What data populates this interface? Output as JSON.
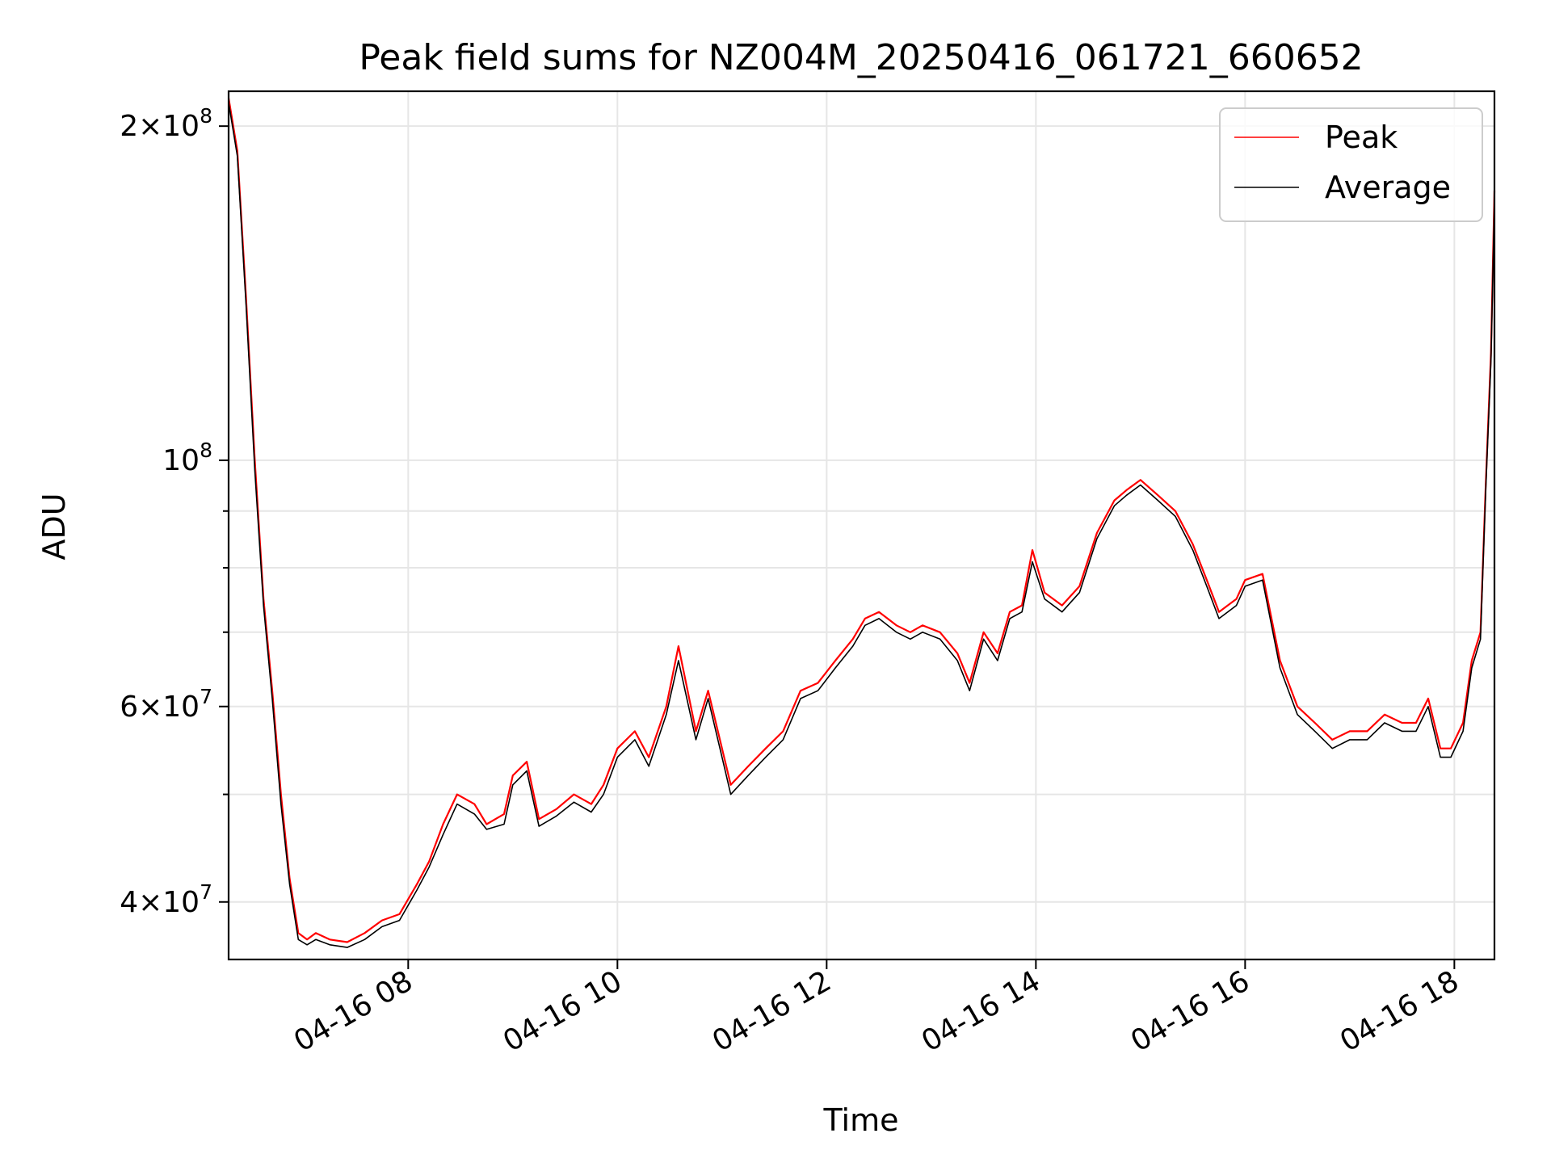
{
  "chart_data": {
    "type": "line",
    "title": "Peak field sums for NZ004M_20250416_061721_660652",
    "xlabel": "Time",
    "ylabel": "ADU",
    "yscale": "log",
    "grid": true,
    "legend_position": "upper-right",
    "xlim": [
      "2025-04-16 06:17",
      "2025-04-16 18:23"
    ],
    "ylim": [
      35500000,
      215000000
    ],
    "x_ticks": [
      {
        "value": "2025-04-16 08:00",
        "label": "04-16 08"
      },
      {
        "value": "2025-04-16 10:00",
        "label": "04-16 10"
      },
      {
        "value": "2025-04-16 12:00",
        "label": "04-16 12"
      },
      {
        "value": "2025-04-16 14:00",
        "label": "04-16 14"
      },
      {
        "value": "2025-04-16 16:00",
        "label": "04-16 16"
      },
      {
        "value": "2025-04-16 18:00",
        "label": "04-16 18"
      }
    ],
    "y_ticks_major": [
      {
        "value": 40000000,
        "mantissa": "4",
        "exponent": "7"
      },
      {
        "value": 60000000,
        "mantissa": "6",
        "exponent": "7"
      },
      {
        "value": 100000000,
        "mantissa": "",
        "exponent": "8"
      },
      {
        "value": 200000000,
        "mantissa": "2",
        "exponent": "8"
      }
    ],
    "y_ticks_minor": [
      50000000,
      70000000,
      80000000,
      90000000
    ],
    "series": [
      {
        "name": "Peak",
        "color": "#ff0000",
        "x": [
          "2025-04-16 06:17",
          "2025-04-16 06:22",
          "2025-04-16 06:27",
          "2025-04-16 06:32",
          "2025-04-16 06:37",
          "2025-04-16 06:42",
          "2025-04-16 06:47",
          "2025-04-16 06:52",
          "2025-04-16 06:57",
          "2025-04-16 07:02",
          "2025-04-16 07:07",
          "2025-04-16 07:15",
          "2025-04-16 07:25",
          "2025-04-16 07:35",
          "2025-04-16 07:45",
          "2025-04-16 07:55",
          "2025-04-16 08:05",
          "2025-04-16 08:12",
          "2025-04-16 08:20",
          "2025-04-16 08:28",
          "2025-04-16 08:38",
          "2025-04-16 08:45",
          "2025-04-16 08:55",
          "2025-04-16 09:00",
          "2025-04-16 09:08",
          "2025-04-16 09:15",
          "2025-04-16 09:25",
          "2025-04-16 09:35",
          "2025-04-16 09:45",
          "2025-04-16 09:52",
          "2025-04-16 10:00",
          "2025-04-16 10:10",
          "2025-04-16 10:18",
          "2025-04-16 10:28",
          "2025-04-16 10:35",
          "2025-04-16 10:45",
          "2025-04-16 10:52",
          "2025-04-16 11:00",
          "2025-04-16 11:05",
          "2025-04-16 11:15",
          "2025-04-16 11:25",
          "2025-04-16 11:35",
          "2025-04-16 11:45",
          "2025-04-16 11:55",
          "2025-04-16 12:05",
          "2025-04-16 12:15",
          "2025-04-16 12:22",
          "2025-04-16 12:30",
          "2025-04-16 12:40",
          "2025-04-16 12:48",
          "2025-04-16 12:55",
          "2025-04-16 13:05",
          "2025-04-16 13:15",
          "2025-04-16 13:22",
          "2025-04-16 13:30",
          "2025-04-16 13:38",
          "2025-04-16 13:45",
          "2025-04-16 13:52",
          "2025-04-16 13:58",
          "2025-04-16 14:05",
          "2025-04-16 14:15",
          "2025-04-16 14:25",
          "2025-04-16 14:35",
          "2025-04-16 14:45",
          "2025-04-16 14:52",
          "2025-04-16 15:00",
          "2025-04-16 15:10",
          "2025-04-16 15:20",
          "2025-04-16 15:30",
          "2025-04-16 15:38",
          "2025-04-16 15:45",
          "2025-04-16 15:55",
          "2025-04-16 16:00",
          "2025-04-16 16:10",
          "2025-04-16 16:20",
          "2025-04-16 16:30",
          "2025-04-16 16:40",
          "2025-04-16 16:50",
          "2025-04-16 17:00",
          "2025-04-16 17:10",
          "2025-04-16 17:20",
          "2025-04-16 17:30",
          "2025-04-16 17:38",
          "2025-04-16 17:45",
          "2025-04-16 17:52",
          "2025-04-16 17:58",
          "2025-04-16 18:05",
          "2025-04-16 18:10",
          "2025-04-16 18:15",
          "2025-04-16 18:18",
          "2025-04-16 18:21",
          "2025-04-16 18:23"
        ],
        "values": [
          212000000,
          190000000,
          140000000,
          100000000,
          75000000,
          62000000,
          50000000,
          42000000,
          37500000,
          37000000,
          37500000,
          37000000,
          36800000,
          37500000,
          38500000,
          39000000,
          41500000,
          43500000,
          47000000,
          50000000,
          49000000,
          47000000,
          48000000,
          52000000,
          53500000,
          47500000,
          48500000,
          50000000,
          49000000,
          51000000,
          55000000,
          57000000,
          54000000,
          60000000,
          68000000,
          57000000,
          62000000,
          55000000,
          51000000,
          53000000,
          55000000,
          57000000,
          62000000,
          63000000,
          66000000,
          69000000,
          72000000,
          73000000,
          71000000,
          70000000,
          71000000,
          70000000,
          67000000,
          63000000,
          70000000,
          67000000,
          73000000,
          74000000,
          83000000,
          76000000,
          74000000,
          77000000,
          86000000,
          92000000,
          94000000,
          96000000,
          93000000,
          90000000,
          84000000,
          78000000,
          73000000,
          75000000,
          78000000,
          79000000,
          66000000,
          60000000,
          58000000,
          56000000,
          57000000,
          57000000,
          59000000,
          58000000,
          58000000,
          61000000,
          55000000,
          55000000,
          58000000,
          66000000,
          70000000,
          95000000,
          125000000,
          175000000
        ]
      },
      {
        "name": "Average",
        "color": "#000000",
        "x": [
          "2025-04-16 06:17",
          "2025-04-16 06:22",
          "2025-04-16 06:27",
          "2025-04-16 06:32",
          "2025-04-16 06:37",
          "2025-04-16 06:42",
          "2025-04-16 06:47",
          "2025-04-16 06:52",
          "2025-04-16 06:57",
          "2025-04-16 07:02",
          "2025-04-16 07:07",
          "2025-04-16 07:15",
          "2025-04-16 07:25",
          "2025-04-16 07:35",
          "2025-04-16 07:45",
          "2025-04-16 07:55",
          "2025-04-16 08:05",
          "2025-04-16 08:12",
          "2025-04-16 08:20",
          "2025-04-16 08:28",
          "2025-04-16 08:38",
          "2025-04-16 08:45",
          "2025-04-16 08:55",
          "2025-04-16 09:00",
          "2025-04-16 09:08",
          "2025-04-16 09:15",
          "2025-04-16 09:25",
          "2025-04-16 09:35",
          "2025-04-16 09:45",
          "2025-04-16 09:52",
          "2025-04-16 10:00",
          "2025-04-16 10:10",
          "2025-04-16 10:18",
          "2025-04-16 10:28",
          "2025-04-16 10:35",
          "2025-04-16 10:45",
          "2025-04-16 10:52",
          "2025-04-16 11:00",
          "2025-04-16 11:05",
          "2025-04-16 11:15",
          "2025-04-16 11:25",
          "2025-04-16 11:35",
          "2025-04-16 11:45",
          "2025-04-16 11:55",
          "2025-04-16 12:05",
          "2025-04-16 12:15",
          "2025-04-16 12:22",
          "2025-04-16 12:30",
          "2025-04-16 12:40",
          "2025-04-16 12:48",
          "2025-04-16 12:55",
          "2025-04-16 13:05",
          "2025-04-16 13:15",
          "2025-04-16 13:22",
          "2025-04-16 13:30",
          "2025-04-16 13:38",
          "2025-04-16 13:45",
          "2025-04-16 13:52",
          "2025-04-16 13:58",
          "2025-04-16 14:05",
          "2025-04-16 14:15",
          "2025-04-16 14:25",
          "2025-04-16 14:35",
          "2025-04-16 14:45",
          "2025-04-16 14:52",
          "2025-04-16 15:00",
          "2025-04-16 15:10",
          "2025-04-16 15:20",
          "2025-04-16 15:30",
          "2025-04-16 15:38",
          "2025-04-16 15:45",
          "2025-04-16 15:55",
          "2025-04-16 16:00",
          "2025-04-16 16:10",
          "2025-04-16 16:20",
          "2025-04-16 16:30",
          "2025-04-16 16:40",
          "2025-04-16 16:50",
          "2025-04-16 17:00",
          "2025-04-16 17:10",
          "2025-04-16 17:20",
          "2025-04-16 17:30",
          "2025-04-16 17:38",
          "2025-04-16 17:45",
          "2025-04-16 17:52",
          "2025-04-16 17:58",
          "2025-04-16 18:05",
          "2025-04-16 18:10",
          "2025-04-16 18:15",
          "2025-04-16 18:18",
          "2025-04-16 18:21",
          "2025-04-16 18:23"
        ],
        "values": [
          210000000,
          188000000,
          138000000,
          98000000,
          74000000,
          61000000,
          49000000,
          41500000,
          37000000,
          36600000,
          37000000,
          36600000,
          36400000,
          37000000,
          38000000,
          38500000,
          41000000,
          43000000,
          46000000,
          49000000,
          48000000,
          46500000,
          47000000,
          51000000,
          52500000,
          46800000,
          47800000,
          49200000,
          48200000,
          50000000,
          54000000,
          56000000,
          53000000,
          59000000,
          66000000,
          56000000,
          61000000,
          54000000,
          50000000,
          52000000,
          54000000,
          56000000,
          61000000,
          62000000,
          65000000,
          68000000,
          71000000,
          72000000,
          70000000,
          69000000,
          70000000,
          69000000,
          66000000,
          62000000,
          69000000,
          66000000,
          72000000,
          73000000,
          81000000,
          75000000,
          73000000,
          76000000,
          85000000,
          91000000,
          93000000,
          95000000,
          92000000,
          89000000,
          83000000,
          77000000,
          72000000,
          74000000,
          77000000,
          78000000,
          65000000,
          59000000,
          57000000,
          55000000,
          56000000,
          56000000,
          58000000,
          57000000,
          57000000,
          60000000,
          54000000,
          54000000,
          57000000,
          65000000,
          69000000,
          94000000,
          123000000,
          172000000
        ]
      }
    ]
  }
}
